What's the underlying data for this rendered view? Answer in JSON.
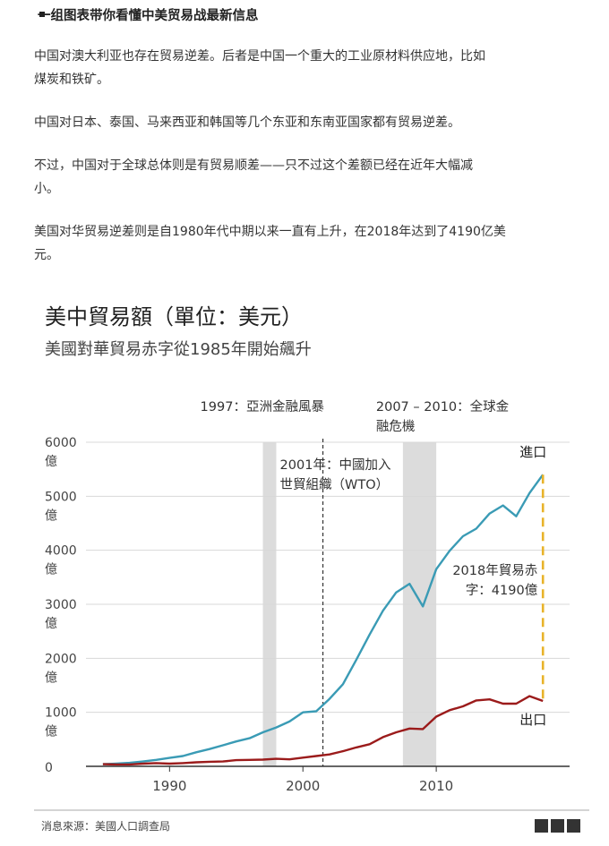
{
  "article": {
    "heading": "一组图表带你看懂中美贸易战最新信息",
    "paragraphs": [
      "中国对澳大利亚也存在贸易逆差。后者是中国一个重大的工业原材料供应地，比如",
      "煤炭和铁矿。",
      "中国对日本、泰国、马来西亚和韩国等几个东亚和东南亚国家都有贸易逆差。",
      "不过，中国对于全球总体则是有贸易顺差——只不过这个差额已经在近年大幅减",
      "小。",
      "美国对华贸易逆差则是自1980年代中期以来一直有上升，在2018年达到了4190亿美",
      "元。"
    ]
  },
  "chart_data": {
    "type": "line",
    "title": "美中貿易額（單位：美元）",
    "subtitle": "美國對華貿易赤字從1985年開始飆升",
    "ylim": [
      0,
      6000
    ],
    "xlim": [
      1984,
      2020
    ],
    "y_ticks": [
      {
        "value": 0,
        "label": [
          "0",
          ""
        ]
      },
      {
        "value": 1000,
        "label": [
          "1000",
          "億"
        ]
      },
      {
        "value": 2000,
        "label": [
          "2000",
          "億"
        ]
      },
      {
        "value": 3000,
        "label": [
          "3000",
          "億"
        ]
      },
      {
        "value": 4000,
        "label": [
          "4000",
          "億"
        ]
      },
      {
        "value": 5000,
        "label": [
          "5000",
          "億"
        ]
      },
      {
        "value": 6000,
        "label": [
          "6000",
          "億"
        ]
      }
    ],
    "x_ticks": [
      1990,
      2000,
      2010
    ],
    "shaded_periods": [
      {
        "start": 1997,
        "end": 1998,
        "label": [
          "1997：亞洲金融風暴"
        ]
      },
      {
        "start": 2007.5,
        "end": 2010,
        "label": [
          "2007 – 2010：全球金",
          "融危機"
        ]
      }
    ],
    "event_line": {
      "x": 2001.5,
      "label": [
        "2001年：中國加入",
        "世貿組織（WTO）"
      ]
    },
    "series": [
      {
        "name": "進口",
        "color": "#3a9bb5",
        "x": [
          1985,
          1986,
          1987,
          1988,
          1989,
          1990,
          1991,
          1992,
          1993,
          1994,
          1995,
          1996,
          1997,
          1998,
          1999,
          2000,
          2001,
          2002,
          2003,
          2004,
          2005,
          2006,
          2007,
          2008,
          2009,
          2010,
          2011,
          2012,
          2013,
          2014,
          2015,
          2016,
          2017,
          2018
        ],
        "values": [
          40,
          50,
          65,
          90,
          120,
          155,
          190,
          260,
          320,
          390,
          460,
          520,
          630,
          720,
          830,
          1000,
          1020,
          1250,
          1520,
          1970,
          2440,
          2880,
          3220,
          3380,
          2960,
          3650,
          3990,
          4260,
          4400,
          4680,
          4830,
          4630,
          5060,
          5400
        ]
      },
      {
        "name": "出口",
        "color": "#9b1b1b",
        "x": [
          1985,
          1986,
          1987,
          1988,
          1989,
          1990,
          1991,
          1992,
          1993,
          1994,
          1995,
          1996,
          1997,
          1998,
          1999,
          2000,
          2001,
          2002,
          2003,
          2004,
          2005,
          2006,
          2007,
          2008,
          2009,
          2010,
          2011,
          2012,
          2013,
          2014,
          2015,
          2016,
          2017,
          2018
        ],
        "values": [
          40,
          35,
          35,
          50,
          60,
          50,
          60,
          75,
          85,
          90,
          115,
          120,
          125,
          140,
          130,
          160,
          190,
          220,
          280,
          350,
          410,
          540,
          630,
          700,
          690,
          920,
          1040,
          1110,
          1220,
          1240,
          1160,
          1160,
          1300,
          1210
        ]
      }
    ],
    "deficit_annotation": {
      "x": 2018,
      "label": [
        "2018年貿易赤",
        "字：4190億"
      ],
      "color": "#e8b32a"
    },
    "source": "消息來源：美國人口調查局",
    "brand": "BBC"
  }
}
